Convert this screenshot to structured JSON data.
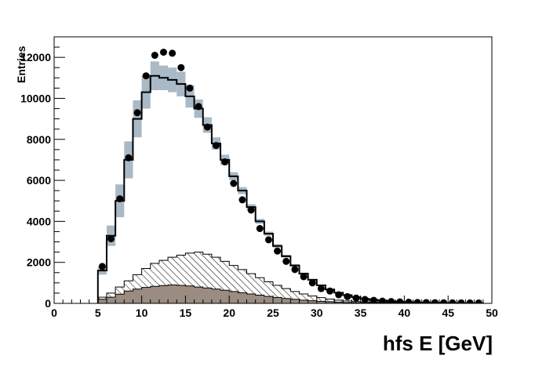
{
  "chart_data": {
    "type": "histogram",
    "title": "",
    "xlabel": "hfs E [GeV]",
    "ylabel": "Entries",
    "xlim": [
      0,
      50
    ],
    "ylim": [
      0,
      13000
    ],
    "x_ticks": [
      0,
      5,
      10,
      15,
      20,
      25,
      30,
      35,
      40,
      45,
      50
    ],
    "y_ticks": [
      0,
      2000,
      4000,
      6000,
      8000,
      10000,
      12000
    ],
    "bin_width": 1,
    "bins_low_edge": [
      5,
      6,
      7,
      8,
      9,
      10,
      11,
      12,
      13,
      14,
      15,
      16,
      17,
      18,
      19,
      20,
      21,
      22,
      23,
      24,
      25,
      26,
      27,
      28,
      29,
      30,
      31,
      32,
      33,
      34,
      35,
      36,
      37,
      38,
      39,
      40,
      41,
      42,
      43,
      44,
      45,
      46,
      47,
      48
    ],
    "series": [
      {
        "name": "",
        "kind": "background-filled-brown",
        "color": "#9a8c80",
        "values": [
          200,
          300,
          450,
          600,
          700,
          780,
          830,
          870,
          900,
          880,
          850,
          800,
          750,
          700,
          640,
          580,
          520,
          460,
          400,
          340,
          290,
          240,
          200,
          160,
          130,
          100,
          80,
          60,
          45,
          35,
          25,
          18,
          12,
          9,
          6,
          5,
          4,
          3,
          2,
          2,
          1,
          1,
          1,
          1
        ]
      },
      {
        "name": "",
        "kind": "background-hatched",
        "color": "#000000",
        "values": [
          300,
          500,
          800,
          1100,
          1400,
          1700,
          1950,
          2100,
          2250,
          2350,
          2450,
          2500,
          2400,
          2250,
          2050,
          1850,
          1650,
          1450,
          1250,
          1050,
          880,
          720,
          580,
          460,
          360,
          280,
          210,
          160,
          120,
          90,
          65,
          48,
          35,
          25,
          18,
          13,
          9,
          7,
          5,
          4,
          3,
          2,
          2,
          1
        ]
      },
      {
        "name": "",
        "kind": "mc-total-line",
        "color": "#000000",
        "values": [
          1600,
          3300,
          5000,
          7000,
          9000,
          10300,
          11100,
          11000,
          10900,
          10700,
          10100,
          9500,
          8700,
          7800,
          7000,
          6200,
          5500,
          4700,
          4000,
          3400,
          2800,
          2300,
          1850,
          1450,
          1150,
          880,
          680,
          520,
          400,
          300,
          220,
          170,
          130,
          95,
          70,
          55,
          40,
          30,
          22,
          17,
          13,
          10,
          8,
          6
        ]
      },
      {
        "name": "",
        "kind": "mc-systematic-band",
        "color": "#a9b9c6",
        "half_width": [
          200,
          500,
          800,
          900,
          900,
          800,
          700,
          600,
          600,
          600,
          550,
          450,
          380,
          300,
          250,
          200,
          170,
          140,
          120,
          100,
          85,
          70,
          60,
          50,
          40,
          30,
          25,
          20,
          15,
          12,
          10,
          8,
          6,
          5,
          4,
          3,
          3,
          2,
          2,
          2,
          1,
          1,
          1,
          1
        ]
      },
      {
        "name": "",
        "kind": "data-points",
        "color": "#000000",
        "values": [
          1800,
          3150,
          5100,
          7100,
          9300,
          11100,
          12100,
          12250,
          12200,
          11500,
          10500,
          9600,
          8600,
          7700,
          6900,
          5850,
          5050,
          4550,
          3650,
          3100,
          2550,
          2050,
          1650,
          1300,
          1000,
          720,
          600,
          420,
          330,
          260,
          190,
          150,
          110,
          90,
          70,
          55,
          45,
          40,
          35,
          30,
          28,
          25,
          22,
          20
        ]
      }
    ]
  }
}
